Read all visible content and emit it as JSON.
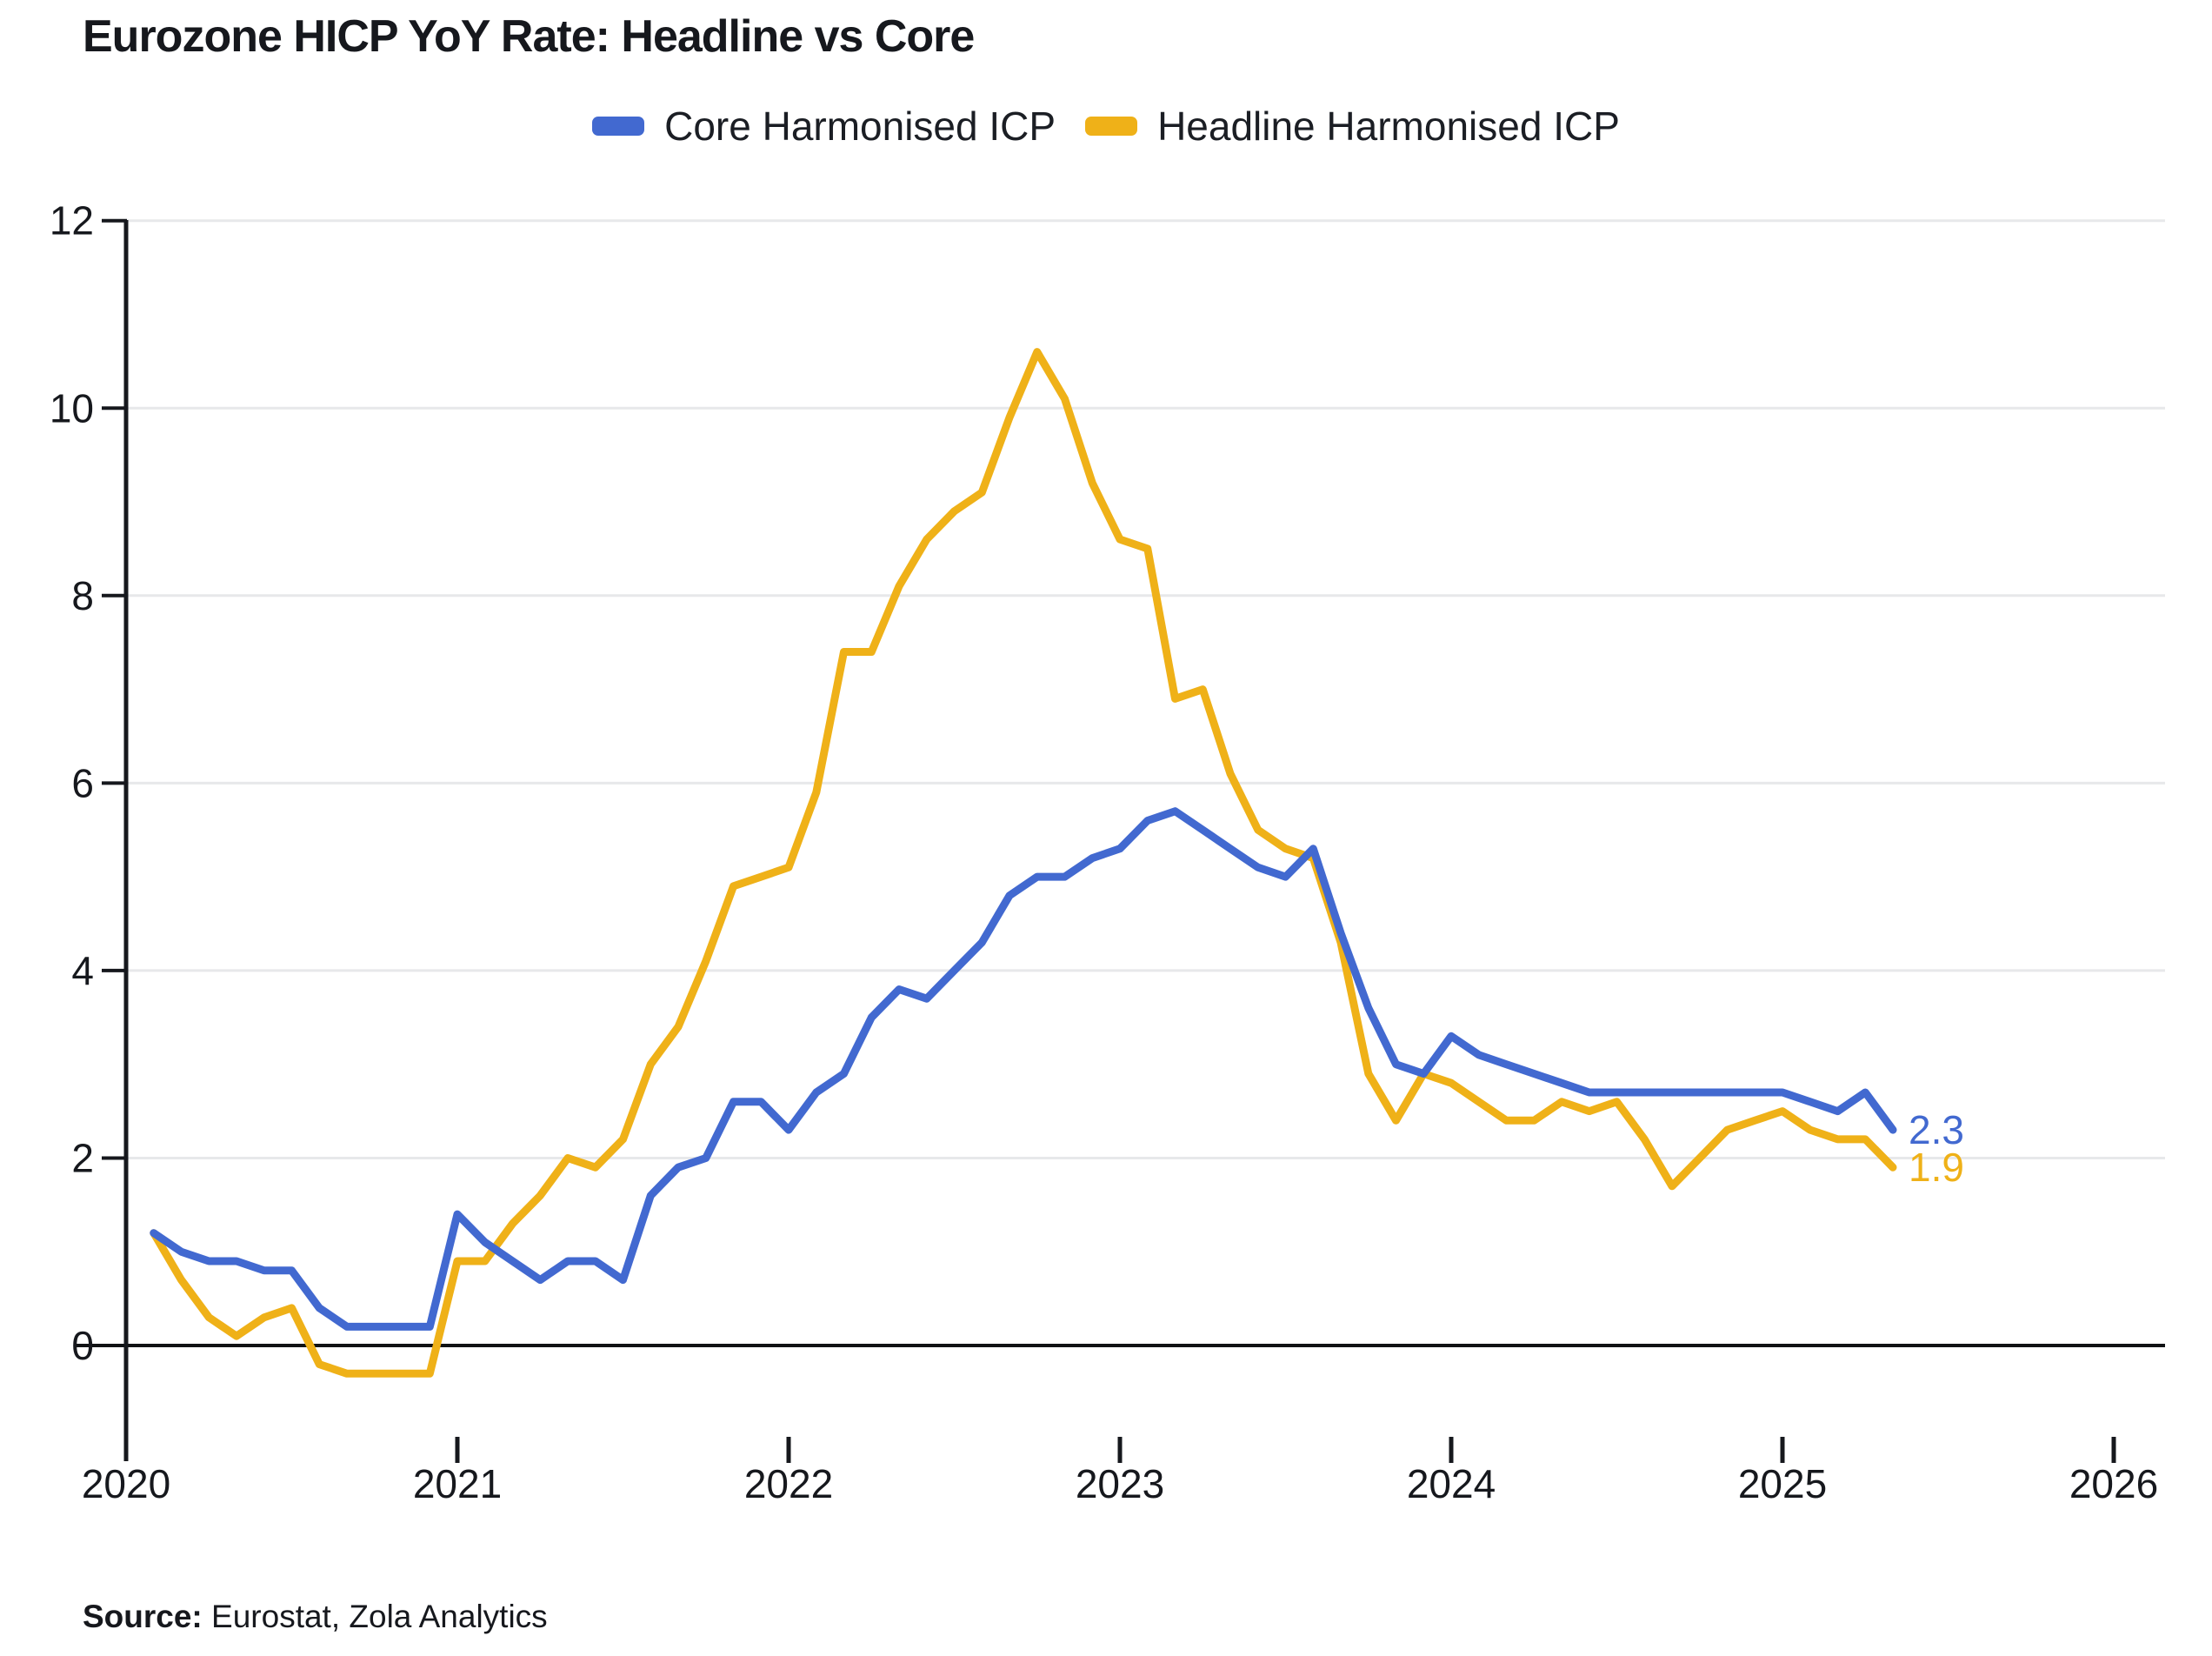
{
  "title": "Eurozone HICP YoY Rate: Headline vs Core",
  "legend": {
    "items": [
      {
        "id": "core",
        "label": "Core Harmonised ICP",
        "color": "#4269d0"
      },
      {
        "id": "headline",
        "label": "Headline Harmonised ICP",
        "color": "#efb118"
      }
    ]
  },
  "source": {
    "prefix": "Source:",
    "text": " Eurostat, Zola Analytics"
  },
  "chart_data": {
    "type": "line",
    "title": "Eurozone HICP YoY Rate: Headline vs Core",
    "xlabel": "",
    "ylabel": "",
    "x_unit": "month",
    "x_start": "2020-02",
    "x_end": "2025-05",
    "start_month_offset": 1,
    "x_tick_labels": [
      "2020",
      "2021",
      "2022",
      "2023",
      "2024",
      "2025",
      "2026"
    ],
    "y_ticks": [
      0,
      2,
      4,
      6,
      8,
      10,
      12
    ],
    "ylim": [
      -1.2,
      12
    ],
    "xlim_years": [
      2020,
      2026.2
    ],
    "grid": true,
    "legend_position": "top-center",
    "series": [
      {
        "id": "core",
        "name": "Core Harmonised ICP",
        "color": "#4269d0",
        "end_label": "2.3",
        "values": [
          1.2,
          1.0,
          0.9,
          0.9,
          0.8,
          0.8,
          0.4,
          0.2,
          0.2,
          0.2,
          0.2,
          1.4,
          1.1,
          0.9,
          0.7,
          0.9,
          0.9,
          0.7,
          1.6,
          1.9,
          2.0,
          2.6,
          2.6,
          2.3,
          2.7,
          2.9,
          3.5,
          3.8,
          3.7,
          4.0,
          4.3,
          4.8,
          5.0,
          5.0,
          5.2,
          5.3,
          5.6,
          5.7,
          5.5,
          5.3,
          5.1,
          5.0,
          5.3,
          4.4,
          3.6,
          3.0,
          2.9,
          3.3,
          3.1,
          3.0,
          2.9,
          2.8,
          2.7,
          2.7,
          2.7,
          2.7,
          2.7,
          2.7,
          2.7,
          2.7,
          2.6,
          2.5,
          2.7,
          2.3
        ]
      },
      {
        "id": "headline",
        "name": "Headline Harmonised ICP",
        "color": "#efb118",
        "end_label": "1.9",
        "values": [
          1.2,
          0.7,
          0.3,
          0.1,
          0.3,
          0.4,
          -0.2,
          -0.3,
          -0.3,
          -0.3,
          -0.3,
          0.9,
          0.9,
          1.3,
          1.6,
          2.0,
          1.9,
          2.2,
          3.0,
          3.4,
          4.1,
          4.9,
          5.0,
          5.1,
          5.9,
          7.4,
          7.4,
          8.1,
          8.6,
          8.9,
          9.1,
          9.9,
          10.6,
          10.1,
          9.2,
          8.6,
          8.5,
          6.9,
          7.0,
          6.1,
          5.5,
          5.3,
          5.2,
          4.3,
          2.9,
          2.4,
          2.9,
          2.8,
          2.6,
          2.4,
          2.4,
          2.6,
          2.5,
          2.6,
          2.2,
          1.7,
          2.0,
          2.3,
          2.4,
          2.5,
          2.3,
          2.2,
          2.2,
          1.9
        ]
      }
    ],
    "colors": {
      "axis": "#16181d",
      "grid": "#e7e8ea",
      "zero_line": "#101214"
    }
  }
}
